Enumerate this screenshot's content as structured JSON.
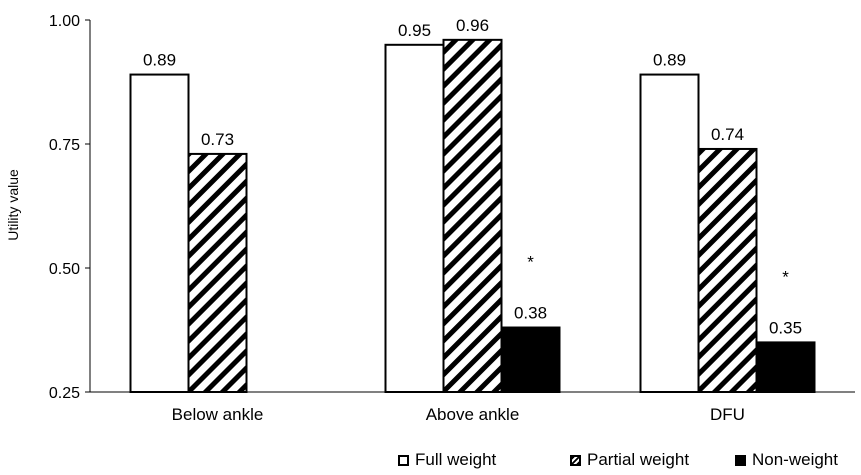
{
  "chart_data": {
    "type": "bar",
    "categories": [
      "Below ankle",
      "Above ankle",
      "DFU"
    ],
    "series": [
      {
        "name": "Full weight",
        "values": [
          0.89,
          0.95,
          0.89
        ],
        "labels": [
          "0.89",
          "0.95",
          "0.89"
        ],
        "fill": "white"
      },
      {
        "name": "Partial weight",
        "values": [
          0.73,
          0.96,
          0.74
        ],
        "labels": [
          "0.73",
          "0.96",
          "0.74"
        ],
        "fill": "hatch"
      },
      {
        "name": "Non-weight",
        "values": [
          null,
          0.38,
          0.35
        ],
        "labels": [
          null,
          "0.38",
          "0.35"
        ],
        "fill": "black"
      }
    ],
    "annotations": [
      {
        "category": "Above ankle",
        "series": "Non-weight",
        "text": "*"
      },
      {
        "category": "DFU",
        "series": "Non-weight",
        "text": "*"
      }
    ],
    "ylabel": "Utility value",
    "ylim": [
      0.25,
      1.0
    ],
    "yticks": [
      "0.25",
      "0.50",
      "0.75",
      "1.00"
    ],
    "grid": false,
    "legend_position": "bottom-right",
    "colors": {
      "bar_stroke": "#000000",
      "black_fill": "#000000",
      "white_fill": "#ffffff"
    }
  }
}
